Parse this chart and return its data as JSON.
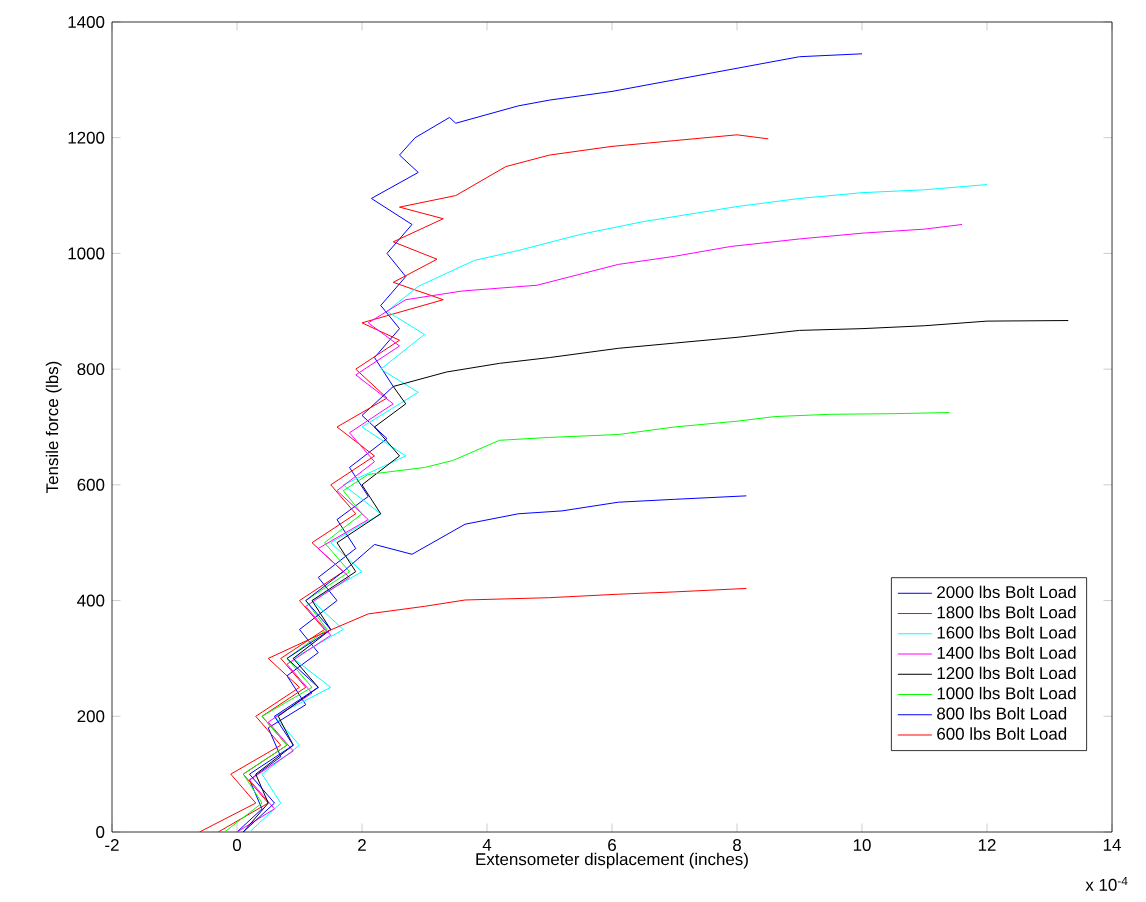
{
  "chart_data": {
    "type": "line",
    "xlabel": "Extensometer displacement (inches)",
    "ylabel": "Tensile force (lbs)",
    "annotations": [
      "x 10$^{-4}$"
    ],
    "xlim": [
      -2,
      14
    ],
    "xticks": [
      -2,
      0,
      2,
      4,
      6,
      8,
      10,
      12,
      14
    ],
    "ylim": [
      0,
      1400
    ],
    "yticks": [
      0,
      200,
      400,
      600,
      800,
      1000,
      1200,
      1400
    ],
    "grid": false,
    "legend": "bottom right",
    "marker": "none",
    "line_style": "solid",
    "series": [
      {
        "name": "2000 lbs Bolt Load",
        "color": "#0000ff",
        "x": [
          0,
          0.4,
          0.2,
          0.7,
          0.5,
          1.1,
          0.8,
          1.3,
          1.0,
          1.6,
          1.3,
          1.9,
          1.6,
          2.1,
          1.8,
          2.4,
          2.0,
          2.5,
          2.2,
          2.6,
          2.3,
          2.7,
          2.4,
          2.8,
          2.15,
          2.9,
          2.6,
          2.85,
          3.4,
          3.5,
          4.5,
          5,
          6,
          7,
          8,
          9,
          10
        ],
        "values": [
          0,
          40,
          90,
          130,
          180,
          220,
          270,
          310,
          350,
          400,
          440,
          490,
          540,
          580,
          630,
          680,
          720,
          770,
          820,
          870,
          910,
          960,
          1000,
          1050,
          1095,
          1140,
          1170,
          1200,
          1235,
          1225,
          1255,
          1265,
          1280,
          1300,
          1320,
          1340,
          1345
        ]
      },
      {
        "name": "1800 lbs Bolt Load",
        "color": "#ff0000",
        "x": [
          -0.3,
          0.5,
          0.1,
          0.8,
          0.4,
          1.1,
          0.7,
          1.4,
          1.0,
          1.7,
          1.2,
          1.9,
          1.5,
          2.2,
          1.6,
          2.4,
          1.9,
          2.6,
          2.0,
          3.3,
          2.5,
          3.2,
          2.5,
          3.3,
          2.6,
          3.5,
          4.3,
          5,
          6,
          7,
          8,
          8.5
        ],
        "values": [
          0,
          50,
          100,
          150,
          200,
          250,
          300,
          350,
          400,
          450,
          500,
          550,
          600,
          650,
          700,
          750,
          800,
          850,
          880,
          920,
          950,
          990,
          1020,
          1060,
          1080,
          1100,
          1150,
          1170,
          1185,
          1195,
          1205,
          1198
        ]
      },
      {
        "name": "1600 lbs Bolt Load",
        "color": "#00ffff",
        "x": [
          0.2,
          0.7,
          0.4,
          1.0,
          0.6,
          1.5,
          0.9,
          1.7,
          1.2,
          2.0,
          1.5,
          2.3,
          1.7,
          2.7,
          2.0,
          2.9,
          2.3,
          3.0,
          2.4,
          2.9,
          3.8,
          4.5,
          5.5,
          6.5,
          8,
          9,
          10,
          11,
          12
        ],
        "values": [
          0,
          50,
          100,
          150,
          200,
          250,
          300,
          350,
          400,
          450,
          500,
          550,
          600,
          650,
          700,
          760,
          800,
          860,
          900,
          943,
          988,
          1005,
          1033,
          1055,
          1081,
          1095,
          1105,
          1110,
          1119
        ]
      },
      {
        "name": "1400 lbs Bolt Load",
        "color": "#ff00ff",
        "x": [
          0,
          0.6,
          0.2,
          0.9,
          0.5,
          1.2,
          0.8,
          1.5,
          1.1,
          1.8,
          1.3,
          2.1,
          1.6,
          2.2,
          1.8,
          2.5,
          1.9,
          2.6,
          2.1,
          2.7,
          3.6,
          4.8,
          6.1,
          7,
          7.9,
          9,
          10,
          11,
          11.6
        ],
        "values": [
          0,
          40,
          90,
          140,
          190,
          240,
          290,
          340,
          390,
          440,
          490,
          540,
          590,
          640,
          690,
          740,
          790,
          840,
          880,
          920,
          935,
          945,
          981,
          995,
          1012,
          1025,
          1035,
          1042,
          1050
        ]
      },
      {
        "name": "1200 lbs Bolt Load",
        "color": "#000000",
        "x": [
          0.1,
          0.5,
          0.3,
          0.9,
          0.66,
          1.3,
          0.9,
          1.5,
          1.2,
          1.9,
          1.6,
          2.3,
          2.0,
          2.6,
          2.2,
          2.7,
          2.5,
          3.35,
          4.2,
          5,
          6.1,
          7,
          8,
          9,
          10,
          11,
          12,
          13.3
        ],
        "values": [
          0,
          50,
          100,
          150,
          200,
          250,
          300,
          350,
          400,
          450,
          500,
          550,
          600,
          650,
          700,
          740,
          770,
          795,
          810,
          820,
          836,
          845,
          855,
          867,
          870,
          875,
          883,
          884
        ]
      },
      {
        "name": "1000 lbs Bolt Load",
        "color": "#00ff00",
        "x": [
          -0.2,
          0.4,
          0.1,
          0.8,
          0.4,
          1.2,
          0.8,
          1.44,
          1.1,
          1.8,
          1.4,
          2.0,
          1.7,
          2.1,
          3.0,
          3.45,
          4.2,
          5,
          6.1,
          7,
          8,
          8.6,
          9.5,
          10.5,
          11.4
        ],
        "values": [
          0,
          50,
          100,
          150,
          200,
          250,
          300,
          350,
          400,
          450,
          500,
          550,
          590,
          618,
          630,
          642,
          677,
          682,
          687,
          700,
          710,
          718,
          722,
          723,
          725
        ]
      },
      {
        "name": "800 lbs Bolt Load",
        "color": "#0000ff",
        "x": [
          0.1,
          0.6,
          0.2,
          0.9,
          0.6,
          1.3,
          0.8,
          1.5,
          1.1,
          1.7,
          2.2,
          2.8,
          3.65,
          4.5,
          5.2,
          6.1,
          7,
          8.15
        ],
        "values": [
          0,
          50,
          100,
          150,
          200,
          250,
          300,
          350,
          400,
          450,
          497,
          480,
          532,
          550,
          555,
          570,
          575,
          581
        ]
      },
      {
        "name": "600 lbs Bolt Load",
        "color": "#ff0000",
        "x": [
          -0.6,
          0.3,
          -0.1,
          0.7,
          0.3,
          1.0,
          0.5,
          1.3,
          2.1,
          3.0,
          3.65,
          5,
          6.1,
          7,
          8.15
        ],
        "values": [
          0,
          50,
          100,
          150,
          200,
          250,
          300,
          340,
          377,
          390,
          401,
          405,
          411,
          415,
          421
        ]
      }
    ]
  }
}
